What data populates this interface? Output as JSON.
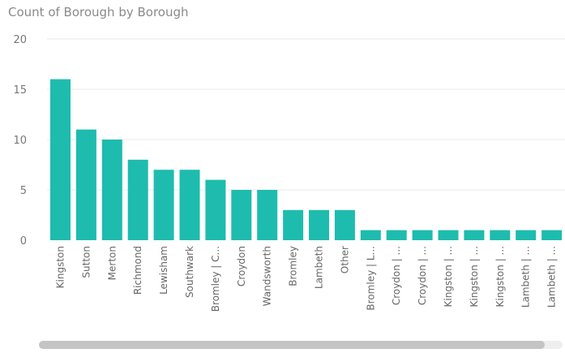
{
  "chart_data": {
    "type": "bar",
    "title": "Count of Borough by Borough",
    "xlabel": "",
    "ylabel": "",
    "ylim": [
      0,
      20
    ],
    "yticks": [
      0,
      5,
      10,
      15,
      20
    ],
    "grid": true,
    "bar_color": "#1ebcae",
    "categories": [
      "Kingston",
      "Sutton",
      "Merton",
      "Richmond",
      "Lewisham",
      "Southwark",
      "Bromley | C...",
      "Croydon",
      "Wandsworth",
      "Bromley",
      "Lambeth",
      "Other",
      "Bromley | L...",
      "Croydon | ...",
      "Croydon | ...",
      "Kingston | ...",
      "Kingston | ...",
      "Kingston | ...",
      "Lambeth | ...",
      "Lambeth | ..."
    ],
    "values": [
      16,
      11,
      10,
      8,
      7,
      7,
      6,
      5,
      5,
      3,
      3,
      3,
      1,
      1,
      1,
      1,
      1,
      1,
      1,
      1
    ]
  }
}
